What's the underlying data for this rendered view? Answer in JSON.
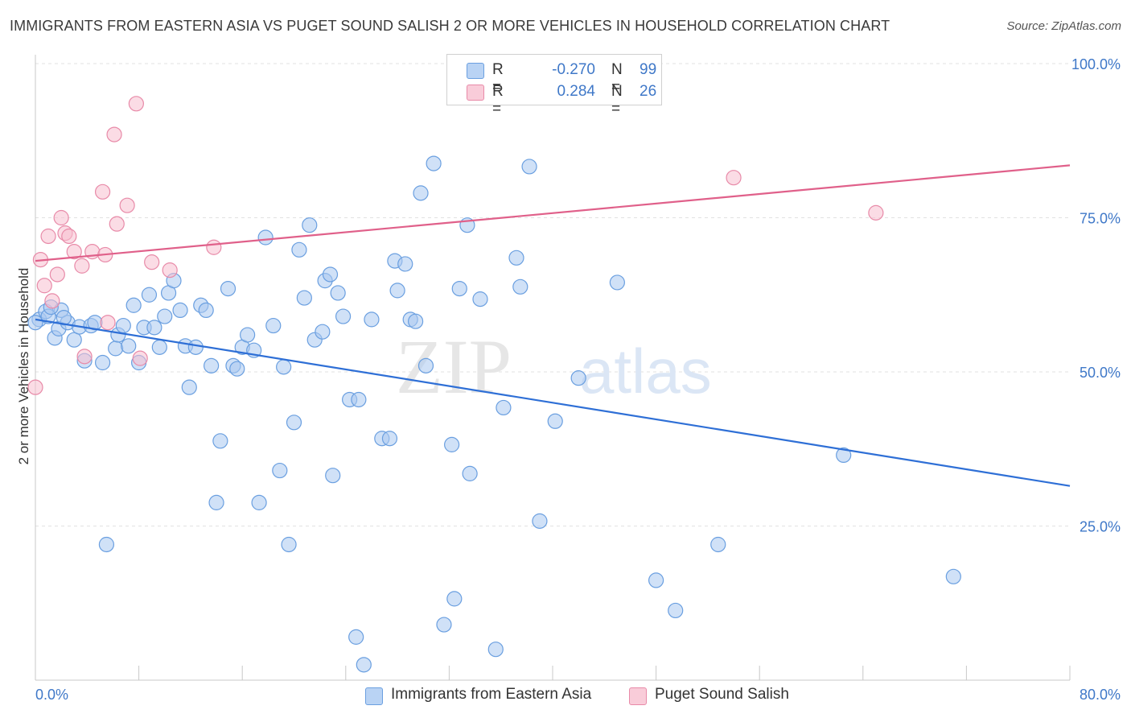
{
  "header": {
    "title": "IMMIGRANTS FROM EASTERN ASIA VS PUGET SOUND SALISH 2 OR MORE VEHICLES IN HOUSEHOLD CORRELATION CHART",
    "source": "Source: ZipAtlas.com"
  },
  "watermark": {
    "zip": "ZIP",
    "atlas": "atlas"
  },
  "legend": {
    "rows": [
      {
        "r_label": "R =",
        "r_value": "-0.270",
        "n_label": "N =",
        "n_value": "99"
      },
      {
        "r_label": "R =",
        "r_value": "0.284",
        "n_label": "N =",
        "n_value": "26"
      }
    ]
  },
  "bottom_legend": {
    "series1": "Immigrants from Eastern Asia",
    "series2": "Puget Sound Salish"
  },
  "colors": {
    "blue_fill": "#a9c8f0",
    "blue_stroke": "#6a9fe0",
    "blue_line": "#2e6fd6",
    "pink_fill": "#f7c0d0",
    "pink_stroke": "#e88aa8",
    "pink_line": "#e0608a",
    "tick_label": "#3f78c8",
    "grid": "#e2e2e2"
  },
  "chart_data": {
    "type": "scatter",
    "title": "IMMIGRANTS FROM EASTERN ASIA VS PUGET SOUND SALISH 2 OR MORE VEHICLES IN HOUSEHOLD CORRELATION CHART",
    "xlabel": "",
    "ylabel": "2 or more Vehicles in Household",
    "xlim": [
      0,
      80
    ],
    "ylim": [
      0,
      100
    ],
    "x_tick_labels": [
      "0.0%",
      "80.0%"
    ],
    "y_ticks": [
      25,
      50,
      75,
      100
    ],
    "y_tick_labels": [
      "25.0%",
      "50.0%",
      "75.0%",
      "100.0%"
    ],
    "grid": true,
    "legend_position": "top-center",
    "series": [
      {
        "name": "Immigrants from Eastern Asia",
        "color": "#a9c8f0",
        "trend": {
          "x": [
            0,
            80
          ],
          "y": [
            58.5,
            31.5
          ]
        },
        "points": [
          [
            0.3,
            58.5
          ],
          [
            0.8,
            59.8
          ],
          [
            1.0,
            59.0
          ],
          [
            1.5,
            55.5
          ],
          [
            1.8,
            57.0
          ],
          [
            2.0,
            60.0
          ],
          [
            2.5,
            58.0
          ],
          [
            3.0,
            55.2
          ],
          [
            3.4,
            57.3
          ],
          [
            3.8,
            51.8
          ],
          [
            4.3,
            57.5
          ],
          [
            4.6,
            58.0
          ],
          [
            5.2,
            51.5
          ],
          [
            5.5,
            22.0
          ],
          [
            6.2,
            53.8
          ],
          [
            6.4,
            56.0
          ],
          [
            6.8,
            57.5
          ],
          [
            7.2,
            54.2
          ],
          [
            7.6,
            60.8
          ],
          [
            8.0,
            51.5
          ],
          [
            8.4,
            57.2
          ],
          [
            8.8,
            62.5
          ],
          [
            9.2,
            57.2
          ],
          [
            9.6,
            54.0
          ],
          [
            10.0,
            59.0
          ],
          [
            10.3,
            62.8
          ],
          [
            10.7,
            64.8
          ],
          [
            11.2,
            60.0
          ],
          [
            11.6,
            54.2
          ],
          [
            11.9,
            47.5
          ],
          [
            12.4,
            54.0
          ],
          [
            12.8,
            60.8
          ],
          [
            13.2,
            60.0
          ],
          [
            13.6,
            51.0
          ],
          [
            14.0,
            28.8
          ],
          [
            14.3,
            38.8
          ],
          [
            14.9,
            63.5
          ],
          [
            15.3,
            51.0
          ],
          [
            15.6,
            50.5
          ],
          [
            16.0,
            54.0
          ],
          [
            16.4,
            56.0
          ],
          [
            16.9,
            53.5
          ],
          [
            17.3,
            28.8
          ],
          [
            17.8,
            71.8
          ],
          [
            18.4,
            57.5
          ],
          [
            18.9,
            34.0
          ],
          [
            19.2,
            50.8
          ],
          [
            19.6,
            22.0
          ],
          [
            20.0,
            41.8
          ],
          [
            20.4,
            69.8
          ],
          [
            20.8,
            62.0
          ],
          [
            21.2,
            73.8
          ],
          [
            21.6,
            55.2
          ],
          [
            22.2,
            56.5
          ],
          [
            22.4,
            64.8
          ],
          [
            22.8,
            65.8
          ],
          [
            23.0,
            33.2
          ],
          [
            23.4,
            62.8
          ],
          [
            23.8,
            59.0
          ],
          [
            24.3,
            45.5
          ],
          [
            24.8,
            7.0
          ],
          [
            25.0,
            45.5
          ],
          [
            25.4,
            2.5
          ],
          [
            26.0,
            58.5
          ],
          [
            26.8,
            39.2
          ],
          [
            27.4,
            39.2
          ],
          [
            27.8,
            68.0
          ],
          [
            28.0,
            63.2
          ],
          [
            28.6,
            67.5
          ],
          [
            29.0,
            58.5
          ],
          [
            29.4,
            58.2
          ],
          [
            29.8,
            79.0
          ],
          [
            30.2,
            51.0
          ],
          [
            30.8,
            83.8
          ],
          [
            31.6,
            9.0
          ],
          [
            32.2,
            38.2
          ],
          [
            32.4,
            13.2
          ],
          [
            32.8,
            63.5
          ],
          [
            33.4,
            73.8
          ],
          [
            33.6,
            33.5
          ],
          [
            34.4,
            61.8
          ],
          [
            35.6,
            5.0
          ],
          [
            36.2,
            44.2
          ],
          [
            37.2,
            68.5
          ],
          [
            37.5,
            63.8
          ],
          [
            38.2,
            83.3
          ],
          [
            39.0,
            25.8
          ],
          [
            40.2,
            42.0
          ],
          [
            42.0,
            49.0
          ],
          [
            43.0,
            100.0
          ],
          [
            45.0,
            64.5
          ],
          [
            48.0,
            16.2
          ],
          [
            49.5,
            11.3
          ],
          [
            52.8,
            22.0
          ],
          [
            62.5,
            36.5
          ],
          [
            71.0,
            16.8
          ],
          [
            0.0,
            58.0
          ],
          [
            1.2,
            60.5
          ],
          [
            2.2,
            58.8
          ]
        ]
      },
      {
        "name": "Puget Sound Salish",
        "color": "#f7c0d0",
        "trend": {
          "x": [
            0,
            80
          ],
          "y": [
            68.0,
            83.5
          ]
        },
        "points": [
          [
            0.0,
            47.5
          ],
          [
            0.4,
            68.2
          ],
          [
            0.7,
            64.0
          ],
          [
            1.0,
            72.0
          ],
          [
            1.3,
            61.5
          ],
          [
            1.7,
            65.8
          ],
          [
            2.0,
            75.0
          ],
          [
            2.3,
            72.5
          ],
          [
            2.6,
            72.0
          ],
          [
            3.0,
            69.5
          ],
          [
            3.6,
            67.2
          ],
          [
            3.8,
            52.5
          ],
          [
            4.4,
            69.5
          ],
          [
            5.2,
            79.2
          ],
          [
            5.4,
            69.0
          ],
          [
            5.6,
            58.0
          ],
          [
            6.1,
            88.5
          ],
          [
            6.3,
            74.0
          ],
          [
            7.1,
            77.0
          ],
          [
            7.8,
            93.5
          ],
          [
            8.1,
            52.2
          ],
          [
            9.0,
            67.8
          ],
          [
            10.4,
            66.5
          ],
          [
            13.8,
            70.2
          ],
          [
            54.0,
            81.5
          ],
          [
            65.0,
            75.8
          ]
        ]
      }
    ]
  }
}
